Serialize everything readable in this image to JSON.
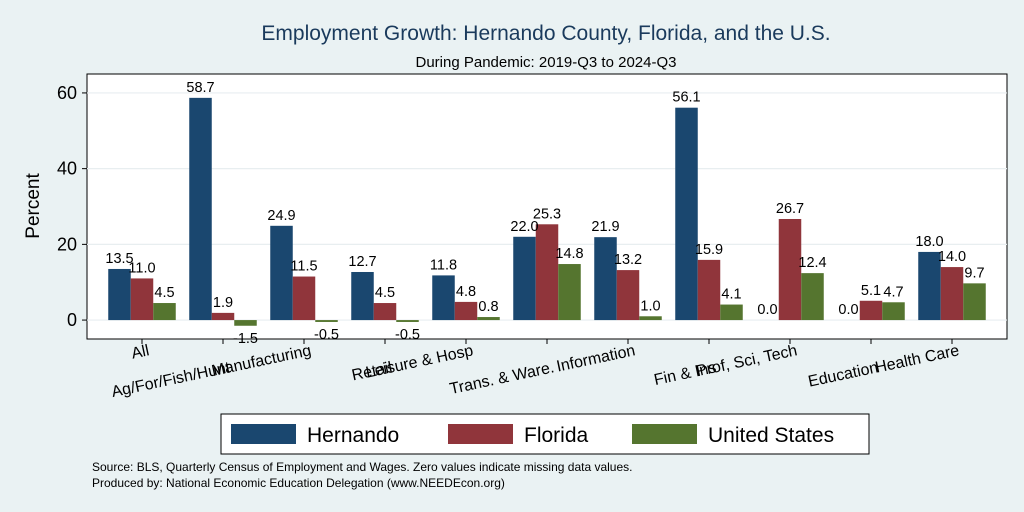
{
  "chart_data": {
    "type": "bar",
    "title": "Employment Growth: Hernando County, Florida, and the U.S.",
    "subtitle": "During Pandemic: 2019-Q3 to 2024-Q3",
    "ylabel": "Percent",
    "ylim": [
      -5,
      65
    ],
    "yticks": [
      0,
      20,
      40,
      60
    ],
    "grid": true,
    "legend_position": "bottom",
    "categories": [
      "All",
      "Ag/For/Fish/Hunt",
      "Manufacturing",
      "Retail",
      "Leisure & Hosp",
      "Trans. & Ware.",
      "Information",
      "Fin & Ins",
      "Prof, Sci, Tech",
      "Education",
      "Health Care"
    ],
    "series": [
      {
        "name": "Hernando",
        "color": "#1a476f",
        "values": [
          13.5,
          58.7,
          24.9,
          12.7,
          11.8,
          22.0,
          21.9,
          56.1,
          0.0,
          0.0,
          18.0
        ]
      },
      {
        "name": "Florida",
        "color": "#90353b",
        "values": [
          11.0,
          1.9,
          11.5,
          4.5,
          4.8,
          25.3,
          13.2,
          15.9,
          26.7,
          5.1,
          14.0
        ]
      },
      {
        "name": "United States",
        "color": "#55752f",
        "values": [
          4.5,
          -1.5,
          -0.5,
          -0.5,
          0.8,
          14.8,
          1.0,
          4.1,
          12.4,
          4.7,
          9.7
        ]
      }
    ],
    "notes": [
      "Source: BLS, Quarterly Census of Employment and Wages. Zero values indicate missing data values.",
      "Produced by: National Economic Education Delegation (www.NEEDEcon.org)"
    ]
  }
}
